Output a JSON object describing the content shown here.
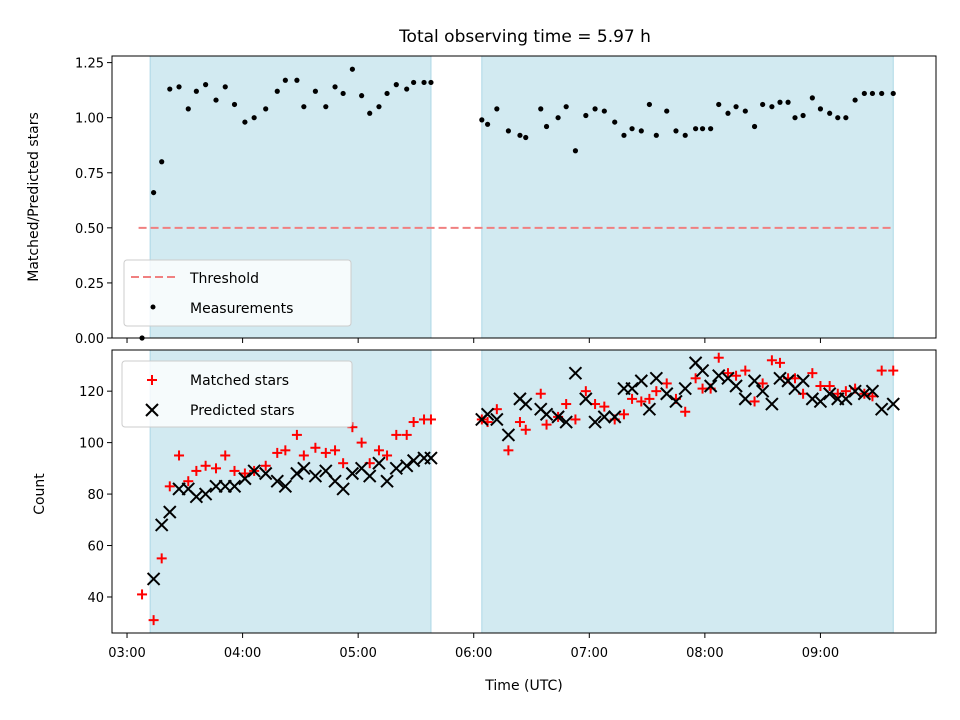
{
  "chart_data": {
    "type": "scatter",
    "title": "Total observing time = 5.97 h",
    "xlabel": "Time (UTC)",
    "x_ticks": [
      "03:00",
      "04:00",
      "05:00",
      "06:00",
      "07:00",
      "08:00",
      "09:00"
    ],
    "xlim_hours": [
      2.87,
      10.0
    ],
    "shaded_intervals_hours": [
      [
        3.2,
        5.63
      ],
      [
        6.07,
        9.63
      ]
    ],
    "shade_color": "#add8e6",
    "panels": [
      {
        "id": "ratio",
        "ylabel": "Matched/Predicted stars",
        "ylim": [
          0.0,
          1.28
        ],
        "y_ticks": [
          "0.00",
          "0.25",
          "0.50",
          "0.75",
          "1.00",
          "1.25"
        ],
        "legend": {
          "position": "lower-left",
          "entries": [
            "Threshold",
            "Measurements"
          ]
        },
        "threshold": {
          "name": "Threshold",
          "value": 0.5,
          "x_range_hours": [
            3.1,
            9.63
          ],
          "color": "#f08080"
        },
        "series": [
          {
            "name": "Measurements",
            "color": "#000000",
            "marker": "dot",
            "x_hours": [
              3.13,
              3.23,
              3.3,
              3.37,
              3.45,
              3.53,
              3.6,
              3.68,
              3.77,
              3.85,
              3.93,
              4.02,
              4.1,
              4.2,
              4.3,
              4.37,
              4.47,
              4.53,
              4.63,
              4.72,
              4.8,
              4.87,
              4.95,
              5.03,
              5.1,
              5.18,
              5.25,
              5.33,
              5.42,
              5.48,
              5.57,
              5.63,
              6.07,
              6.12,
              6.2,
              6.3,
              6.4,
              6.45,
              6.58,
              6.63,
              6.73,
              6.8,
              6.88,
              6.97,
              7.05,
              7.13,
              7.22,
              7.3,
              7.37,
              7.45,
              7.52,
              7.58,
              7.67,
              7.75,
              7.83,
              7.92,
              7.98,
              8.05,
              8.12,
              8.2,
              8.27,
              8.35,
              8.43,
              8.5,
              8.58,
              8.65,
              8.72,
              8.78,
              8.85,
              8.93,
              9.0,
              9.08,
              9.15,
              9.22,
              9.3,
              9.38,
              9.45,
              9.53,
              9.63
            ],
            "y": [
              0.0,
              0.66,
              0.8,
              1.13,
              1.14,
              1.04,
              1.12,
              1.15,
              1.08,
              1.14,
              1.06,
              0.98,
              1.0,
              1.04,
              1.12,
              1.17,
              1.17,
              1.05,
              1.12,
              1.05,
              1.14,
              1.11,
              1.22,
              1.1,
              1.02,
              1.05,
              1.11,
              1.15,
              1.13,
              1.16,
              1.16,
              1.16,
              0.99,
              0.97,
              1.04,
              0.94,
              0.92,
              0.91,
              1.04,
              0.96,
              1.0,
              1.05,
              0.85,
              1.01,
              1.04,
              1.03,
              0.98,
              0.92,
              0.95,
              0.94,
              1.06,
              0.92,
              1.03,
              0.94,
              0.92,
              0.95,
              0.95,
              0.95,
              1.06,
              1.02,
              1.05,
              1.03,
              0.96,
              1.06,
              1.05,
              1.07,
              1.07,
              1.0,
              1.01,
              1.09,
              1.04,
              1.02,
              1.0,
              1.0,
              1.08,
              1.11,
              1.11,
              1.11,
              1.11
            ]
          }
        ]
      },
      {
        "id": "counts",
        "ylabel": "Count",
        "ylim": [
          26,
          136
        ],
        "y_ticks": [
          "40",
          "60",
          "80",
          "100",
          "120"
        ],
        "legend": {
          "position": "top-left",
          "entries": [
            "Matched stars",
            "Predicted stars"
          ]
        },
        "series": [
          {
            "name": "Matched stars",
            "color": "#ff0000",
            "marker": "plus",
            "x_hours": [
              3.13,
              3.23,
              3.3,
              3.37,
              3.45,
              3.53,
              3.6,
              3.68,
              3.77,
              3.85,
              3.93,
              4.02,
              4.1,
              4.2,
              4.3,
              4.37,
              4.47,
              4.53,
              4.63,
              4.72,
              4.8,
              4.87,
              4.95,
              5.03,
              5.1,
              5.18,
              5.25,
              5.33,
              5.42,
              5.48,
              5.57,
              5.63,
              6.07,
              6.12,
              6.2,
              6.3,
              6.4,
              6.45,
              6.58,
              6.63,
              6.73,
              6.8,
              6.88,
              6.97,
              7.05,
              7.13,
              7.22,
              7.3,
              7.37,
              7.45,
              7.52,
              7.58,
              7.67,
              7.75,
              7.83,
              7.92,
              7.98,
              8.05,
              8.12,
              8.2,
              8.27,
              8.35,
              8.43,
              8.5,
              8.58,
              8.65,
              8.72,
              8.78,
              8.85,
              8.93,
              9.0,
              9.08,
              9.15,
              9.22,
              9.3,
              9.38,
              9.45,
              9.53,
              9.63
            ],
            "y": [
              41,
              31,
              55,
              83,
              95,
              85,
              89,
              91,
              90,
              95,
              89,
              88,
              89,
              91,
              96,
              97,
              103,
              95,
              98,
              96,
              97,
              92,
              106,
              100,
              92,
              97,
              95,
              103,
              103,
              108,
              109,
              109,
              109,
              108,
              113,
              97,
              108,
              105,
              119,
              107,
              110,
              115,
              109,
              120,
              115,
              114,
              109,
              111,
              117,
              116,
              117,
              120,
              123,
              117,
              112,
              125,
              121,
              121,
              133,
              127,
              126,
              128,
              116,
              123,
              132,
              131,
              125,
              125,
              119,
              127,
              122,
              122,
              119,
              120,
              121,
              119,
              118,
              128,
              128
            ]
          },
          {
            "name": "Predicted stars",
            "color": "#000000",
            "marker": "x",
            "x_hours": [
              3.13,
              3.23,
              3.3,
              3.37,
              3.45,
              3.53,
              3.6,
              3.68,
              3.77,
              3.85,
              3.93,
              4.02,
              4.1,
              4.2,
              4.3,
              4.37,
              4.47,
              4.53,
              4.63,
              4.72,
              4.8,
              4.87,
              4.95,
              5.03,
              5.1,
              5.18,
              5.25,
              5.33,
              5.42,
              5.48,
              5.57,
              5.63,
              6.07,
              6.12,
              6.2,
              6.3,
              6.4,
              6.45,
              6.58,
              6.63,
              6.73,
              6.8,
              6.88,
              6.97,
              7.05,
              7.13,
              7.22,
              7.3,
              7.37,
              7.45,
              7.52,
              7.58,
              7.67,
              7.75,
              7.83,
              7.92,
              7.98,
              8.05,
              8.12,
              8.2,
              8.27,
              8.35,
              8.43,
              8.5,
              8.58,
              8.65,
              8.72,
              8.78,
              8.85,
              8.93,
              9.0,
              9.08,
              9.15,
              9.22,
              9.3,
              9.38,
              9.45,
              9.53,
              9.63
            ],
            "y": [
              null,
              47,
              68,
              73,
              82,
              82,
              79,
              80,
              83,
              83,
              83,
              86,
              89,
              88,
              85,
              83,
              88,
              90,
              87,
              89,
              85,
              82,
              88,
              90,
              87,
              92,
              85,
              90,
              91,
              93,
              94,
              94,
              109,
              111,
              109,
              103,
              117,
              115,
              113,
              111,
              110,
              108,
              127,
              117,
              108,
              110,
              110,
              121,
              121,
              124,
              113,
              125,
              119,
              116,
              121,
              131,
              128,
              122,
              126,
              125,
              122,
              117,
              124,
              120,
              115,
              125,
              124,
              121,
              124,
              117,
              116,
              119,
              117,
              117,
              120,
              119,
              120,
              113,
              115
            ]
          }
        ]
      }
    ]
  }
}
